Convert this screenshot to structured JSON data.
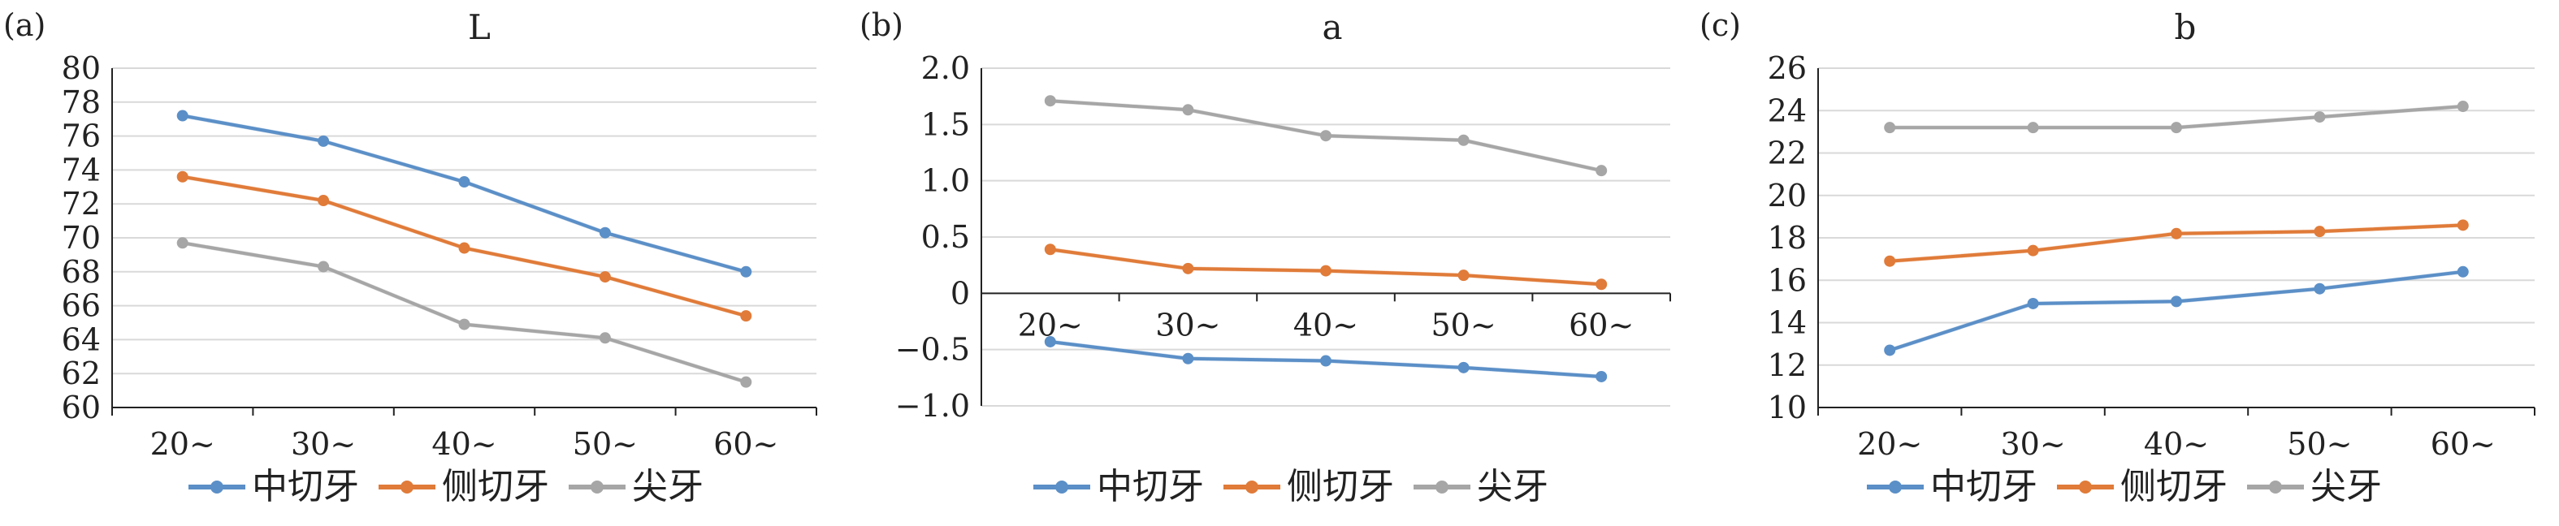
{
  "colors": {
    "中切牙": "#5b8fc7",
    "侧切牙": "#e07b39",
    "尖牙": "#a6a6a6",
    "grid": "#d9d9d9",
    "axis": "#222222"
  },
  "chart_data": [
    {
      "type": "line",
      "panel_label": "(a)",
      "title": "L",
      "categories": [
        "20~",
        "30~",
        "40~",
        "50~",
        "60~"
      ],
      "ylim": [
        60,
        80
      ],
      "yticks": [
        60,
        62,
        64,
        66,
        68,
        70,
        72,
        74,
        76,
        78,
        80
      ],
      "ytick_labels": [
        "60",
        "62",
        "64",
        "66",
        "68",
        "70",
        "72",
        "74",
        "76",
        "78",
        "80"
      ],
      "grid": true,
      "legend": "bottom",
      "series": [
        {
          "name": "中切牙",
          "values": [
            77.2,
            75.7,
            73.3,
            70.3,
            68.0
          ]
        },
        {
          "name": "侧切牙",
          "values": [
            73.6,
            72.2,
            69.4,
            67.7,
            65.4
          ]
        },
        {
          "name": "尖牙",
          "values": [
            69.7,
            68.3,
            64.9,
            64.1,
            61.5
          ]
        }
      ]
    },
    {
      "type": "line",
      "panel_label": "(b)",
      "title": "a",
      "categories": [
        "20~",
        "30~",
        "40~",
        "50~",
        "60~"
      ],
      "ylim": [
        -1.0,
        2.0
      ],
      "yticks": [
        -1.0,
        -0.5,
        0,
        0.5,
        1.0,
        1.5,
        2.0
      ],
      "ytick_labels": [
        "−1.0",
        "−0.5",
        "0",
        "0.5",
        "1.0",
        "1.5",
        "2.0"
      ],
      "grid": true,
      "legend": "bottom",
      "series": [
        {
          "name": "中切牙",
          "values": [
            -0.43,
            -0.58,
            -0.6,
            -0.66,
            -0.74
          ]
        },
        {
          "name": "侧切牙",
          "values": [
            0.39,
            0.22,
            0.2,
            0.16,
            0.08
          ]
        },
        {
          "name": "尖牙",
          "values": [
            1.71,
            1.63,
            1.4,
            1.36,
            1.09
          ]
        }
      ]
    },
    {
      "type": "line",
      "panel_label": "(c)",
      "title": "b",
      "categories": [
        "20~",
        "30~",
        "40~",
        "50~",
        "60~"
      ],
      "ylim": [
        10,
        26
      ],
      "yticks": [
        10,
        12,
        14,
        16,
        18,
        20,
        22,
        24,
        26
      ],
      "ytick_labels": [
        "10",
        "12",
        "14",
        "16",
        "18",
        "20",
        "22",
        "24",
        "26"
      ],
      "grid": true,
      "legend": "bottom",
      "series": [
        {
          "name": "中切牙",
          "values": [
            12.7,
            14.9,
            15.0,
            15.6,
            16.4
          ]
        },
        {
          "name": "侧切牙",
          "values": [
            16.9,
            17.4,
            18.2,
            18.3,
            18.6
          ]
        },
        {
          "name": "尖牙",
          "values": [
            23.2,
            23.2,
            23.2,
            23.7,
            24.2
          ]
        }
      ]
    }
  ]
}
